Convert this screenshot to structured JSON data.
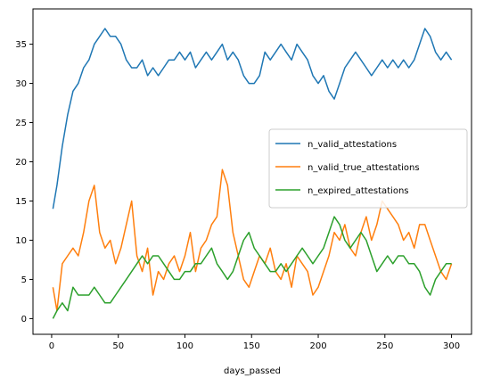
{
  "chart_data": {
    "type": "line",
    "title": "",
    "xlabel": "days_passed",
    "ylabel": "",
    "xlim": [
      -14,
      315
    ],
    "ylim": [
      -2,
      39.5
    ],
    "xticks": [
      0,
      50,
      100,
      150,
      200,
      250,
      300
    ],
    "yticks": [
      0,
      5,
      10,
      15,
      20,
      25,
      30,
      35
    ],
    "grid": false,
    "legend_position": "center-right",
    "series": [
      {
        "name": "n_valid_attestations",
        "color": "#1f77b4",
        "x": [
          1,
          4,
          8,
          12,
          16,
          20,
          24,
          28,
          32,
          36,
          40,
          44,
          48,
          52,
          56,
          60,
          64,
          68,
          72,
          76,
          80,
          84,
          88,
          92,
          96,
          100,
          104,
          108,
          112,
          116,
          120,
          124,
          128,
          132,
          136,
          140,
          144,
          148,
          152,
          156,
          160,
          164,
          168,
          172,
          176,
          180,
          184,
          188,
          192,
          196,
          200,
          204,
          208,
          212,
          216,
          220,
          224,
          228,
          232,
          236,
          240,
          244,
          248,
          252,
          256,
          260,
          264,
          268,
          272,
          276,
          280,
          284,
          288,
          292,
          296,
          300
        ],
        "values": [
          14,
          17,
          22,
          26,
          29,
          30,
          32,
          33,
          35,
          36,
          37,
          36,
          36,
          35,
          33,
          32,
          32,
          33,
          31,
          32,
          31,
          32,
          33,
          33,
          34,
          33,
          34,
          32,
          33,
          34,
          33,
          34,
          35,
          33,
          34,
          33,
          31,
          30,
          30,
          31,
          34,
          33,
          34,
          35,
          34,
          33,
          35,
          34,
          33,
          31,
          30,
          31,
          29,
          28,
          30,
          32,
          33,
          34,
          33,
          32,
          31,
          32,
          33,
          32,
          33,
          32,
          33,
          32,
          33,
          35,
          37,
          36,
          34,
          33,
          34,
          33
        ]
      },
      {
        "name": "n_valid_true_attestations",
        "color": "#ff7f0e",
        "x": [
          1,
          4,
          8,
          12,
          16,
          20,
          24,
          28,
          32,
          36,
          40,
          44,
          48,
          52,
          56,
          60,
          64,
          68,
          72,
          76,
          80,
          84,
          88,
          92,
          96,
          100,
          104,
          108,
          112,
          116,
          120,
          124,
          128,
          132,
          136,
          140,
          144,
          148,
          152,
          156,
          160,
          164,
          168,
          172,
          176,
          180,
          184,
          188,
          192,
          196,
          200,
          204,
          208,
          212,
          216,
          220,
          224,
          228,
          232,
          236,
          240,
          244,
          248,
          252,
          256,
          260,
          264,
          268,
          272,
          276,
          280,
          284,
          288,
          292,
          296,
          300
        ],
        "values": [
          4,
          1,
          7,
          8,
          9,
          8,
          11,
          15,
          17,
          11,
          9,
          10,
          7,
          9,
          12,
          15,
          8,
          6,
          9,
          3,
          6,
          5,
          7,
          8,
          6,
          8,
          11,
          6,
          9,
          10,
          12,
          13,
          19,
          17,
          11,
          8,
          5,
          4,
          6,
          8,
          7,
          9,
          6,
          5,
          7,
          4,
          8,
          7,
          6,
          3,
          4,
          6,
          8,
          11,
          10,
          12,
          9,
          8,
          11,
          13,
          10,
          12,
          15,
          14,
          13,
          12,
          10,
          11,
          9,
          12,
          12,
          10,
          8,
          6,
          5,
          7
        ]
      },
      {
        "name": "n_expired_attestations",
        "color": "#2ca02c",
        "x": [
          1,
          4,
          8,
          12,
          16,
          20,
          24,
          28,
          32,
          36,
          40,
          44,
          48,
          52,
          56,
          60,
          64,
          68,
          72,
          76,
          80,
          84,
          88,
          92,
          96,
          100,
          104,
          108,
          112,
          116,
          120,
          124,
          128,
          132,
          136,
          140,
          144,
          148,
          152,
          156,
          160,
          164,
          168,
          172,
          176,
          180,
          184,
          188,
          192,
          196,
          200,
          204,
          208,
          212,
          216,
          220,
          224,
          228,
          232,
          236,
          240,
          244,
          248,
          252,
          256,
          260,
          264,
          268,
          272,
          276,
          280,
          284,
          288,
          292,
          296,
          300
        ],
        "values": [
          0,
          1,
          2,
          1,
          4,
          3,
          3,
          3,
          4,
          3,
          2,
          2,
          3,
          4,
          5,
          6,
          7,
          8,
          7,
          8,
          8,
          7,
          6,
          5,
          5,
          6,
          6,
          7,
          7,
          8,
          9,
          7,
          6,
          5,
          6,
          8,
          10,
          11,
          9,
          8,
          7,
          6,
          6,
          7,
          6,
          7,
          8,
          9,
          8,
          7,
          8,
          9,
          11,
          13,
          12,
          10,
          9,
          10,
          11,
          10,
          8,
          6,
          7,
          8,
          7,
          8,
          8,
          7,
          7,
          6,
          4,
          3,
          5,
          6,
          7,
          7
        ]
      }
    ]
  }
}
